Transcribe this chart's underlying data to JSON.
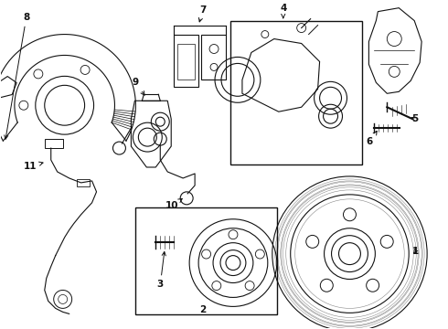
{
  "bg_color": "#ffffff",
  "line_color": "#111111",
  "fig_width": 4.9,
  "fig_height": 3.6,
  "dpi": 100,
  "xlim": [
    0,
    490
  ],
  "ylim": [
    0,
    360
  ]
}
